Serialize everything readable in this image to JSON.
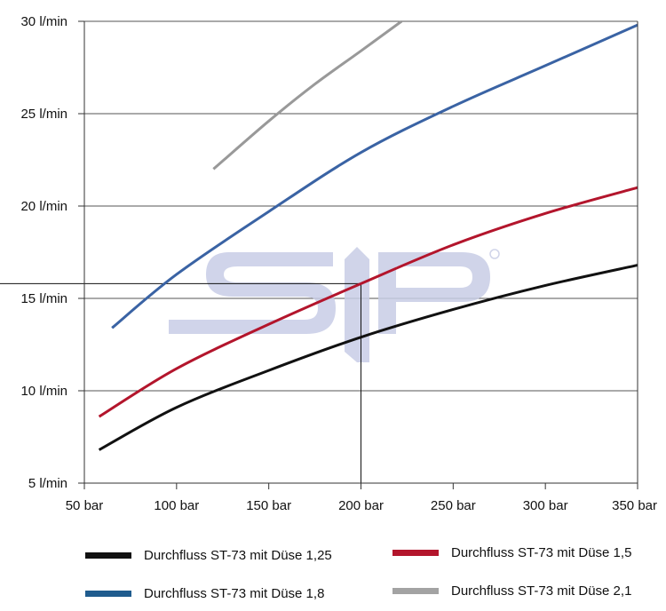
{
  "chart_data": {
    "type": "line",
    "title": "",
    "xlabel": "",
    "ylabel": "",
    "x_ticks": [
      "50 bar",
      "100 bar",
      "150 bar",
      "200 bar",
      "250 bar",
      "300 bar",
      "350 bar"
    ],
    "x_tick_values": [
      50,
      100,
      150,
      200,
      250,
      300,
      350
    ],
    "y_ticks": [
      "5 l/min",
      "10 l/min",
      "15 l/min",
      "20 l/min",
      "25 l/min",
      "30 l/min"
    ],
    "y_tick_values": [
      5,
      10,
      15,
      20,
      25,
      30
    ],
    "xlim": [
      50,
      350
    ],
    "ylim": [
      5,
      30
    ],
    "grid": "horizontal",
    "legend_position": "bottom",
    "series": [
      {
        "name": "Durchfluss ST-73 mit Düse 1,25",
        "color": "#111111",
        "x": [
          58,
          100,
          150,
          200,
          250,
          300,
          350
        ],
        "y": [
          6.8,
          9.1,
          11.1,
          12.9,
          14.4,
          15.7,
          16.8
        ]
      },
      {
        "name": "Durchfluss ST-73 mit Düse 1,5",
        "color": "#b3152c",
        "x": [
          58,
          100,
          150,
          200,
          250,
          300,
          350
        ],
        "y": [
          8.6,
          11.2,
          13.6,
          15.8,
          17.9,
          19.6,
          21.0
        ]
      },
      {
        "name": "Durchfluss ST-73 mit Düse 1,8",
        "color": "#3a63a4",
        "x": [
          65,
          100,
          150,
          200,
          250,
          300,
          350
        ],
        "y": [
          13.4,
          16.3,
          19.7,
          22.9,
          25.4,
          27.6,
          29.8
        ]
      },
      {
        "name": "Durchfluss ST-73 mit Düse 2,1",
        "color": "#999999",
        "x": [
          120,
          150,
          175,
          200,
          222
        ],
        "y": [
          22.0,
          24.6,
          26.6,
          28.4,
          30.0
        ]
      }
    ],
    "reference_lines": {
      "x": 200,
      "y": 15.8,
      "color": "#111111"
    }
  },
  "watermark": {
    "text": "SIP",
    "color": "#c8cde6"
  },
  "legend": {
    "items": [
      {
        "label": "Durchfluss ST-73 mit Düse 1,25",
        "color": "#111111"
      },
      {
        "label": "Durchfluss ST-73 mit Düse 1,5",
        "color": "#b3152c"
      },
      {
        "label": "Durchfluss ST-73 mit Düse 1,8",
        "color": "#1f5c8e"
      },
      {
        "label": "Durchfluss ST-73 mit Düse 2,1",
        "color": "#a3a3a3"
      }
    ]
  }
}
